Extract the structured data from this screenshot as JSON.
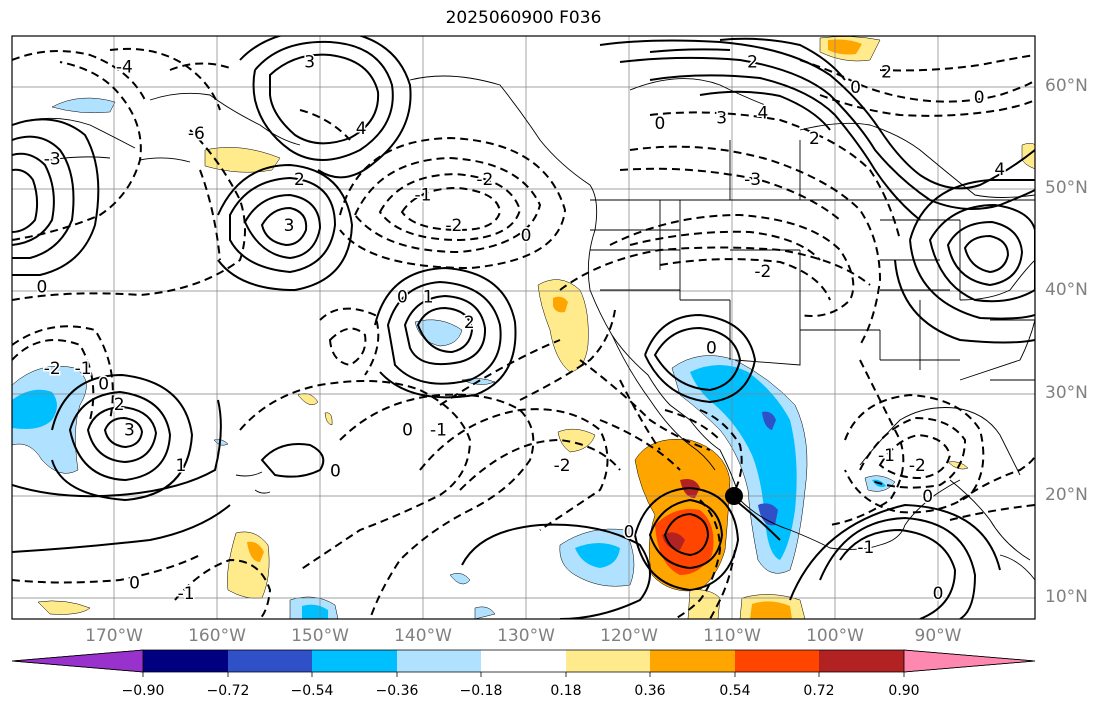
{
  "title": "2025060900 F036",
  "lat_labels": [
    {
      "text": "60°N",
      "lat": 60
    },
    {
      "text": "50°N",
      "lat": 50
    },
    {
      "text": "40°N",
      "lat": 40
    },
    {
      "text": "30°N",
      "lat": 30
    },
    {
      "text": "20°N",
      "lat": 20
    },
    {
      "text": "10°N",
      "lat": 10
    }
  ],
  "lon_labels": [
    {
      "text": "170°W",
      "lon": -170
    },
    {
      "text": "160°W",
      "lon": -160
    },
    {
      "text": "150°W",
      "lon": -150
    },
    {
      "text": "140°W",
      "lon": -140
    },
    {
      "text": "130°W",
      "lon": -130
    },
    {
      "text": "120°W",
      "lon": -120
    },
    {
      "text": "110°W",
      "lon": -110
    },
    {
      "text": "100°W",
      "lon": -100
    },
    {
      "text": "90°W",
      "lon": -90
    }
  ],
  "colorbar": {
    "colors": [
      "#9932cc",
      "#000080",
      "#3050c8",
      "#00bfff",
      "#b0e2ff",
      "#ffffff",
      "#ffeb8c",
      "#ffa500",
      "#ff4500",
      "#b22222",
      "#ff88b0"
    ],
    "tick_labels": [
      "−0.90",
      "−0.72",
      "−0.54",
      "−0.36",
      "−0.18",
      "0.18",
      "0.36",
      "0.54",
      "0.72",
      "0.90"
    ]
  },
  "contour_labels": [
    {
      "text": "-4",
      "lon": -169,
      "lat": 62
    },
    {
      "text": "3",
      "lon": -151,
      "lat": 62.5
    },
    {
      "text": "4",
      "lon": -146,
      "lat": 56
    },
    {
      "text": "-6",
      "lon": -162,
      "lat": 55.5
    },
    {
      "text": "-3",
      "lon": -176,
      "lat": 53
    },
    {
      "text": "2",
      "lon": -152,
      "lat": 51
    },
    {
      "text": "3",
      "lon": -153,
      "lat": 46.5
    },
    {
      "text": "-2",
      "lon": -134,
      "lat": 51
    },
    {
      "text": "-2",
      "lon": -137,
      "lat": 46.5
    },
    {
      "text": "-1",
      "lon": -140,
      "lat": 49.5
    },
    {
      "text": "0",
      "lon": -130,
      "lat": 45.5
    },
    {
      "text": "0",
      "lon": -177,
      "lat": 40.5
    },
    {
      "text": "0",
      "lon": -142,
      "lat": 39.5
    },
    {
      "text": "1",
      "lon": -139.5,
      "lat": 39.5
    },
    {
      "text": "2",
      "lon": -135.5,
      "lat": 37
    },
    {
      "text": "-2",
      "lon": -176,
      "lat": 32.5
    },
    {
      "text": "-1",
      "lon": -173,
      "lat": 32.5
    },
    {
      "text": "0",
      "lon": -171,
      "lat": 31
    },
    {
      "text": "2",
      "lon": -169.5,
      "lat": 29
    },
    {
      "text": "3",
      "lon": -168.5,
      "lat": 26.5
    },
    {
      "text": "1",
      "lon": -163.5,
      "lat": 23
    },
    {
      "text": "0",
      "lon": -148.5,
      "lat": 22.5
    },
    {
      "text": "0",
      "lon": -141.5,
      "lat": 26.5
    },
    {
      "text": "-1",
      "lon": -138.5,
      "lat": 26.5
    },
    {
      "text": "-2",
      "lon": -126.5,
      "lat": 23
    },
    {
      "text": "0",
      "lon": -112,
      "lat": 34.5
    },
    {
      "text": "0",
      "lon": -120,
      "lat": 16.5
    },
    {
      "text": "0",
      "lon": -168,
      "lat": 11.5
    },
    {
      "text": "-1",
      "lon": -163,
      "lat": 10.5
    },
    {
      "text": "-3",
      "lon": -108,
      "lat": 51
    },
    {
      "text": "3",
      "lon": -111,
      "lat": 57
    },
    {
      "text": "4",
      "lon": -107,
      "lat": 57.5
    },
    {
      "text": "2",
      "lon": -102,
      "lat": 55
    },
    {
      "text": "0",
      "lon": -117,
      "lat": 56.5
    },
    {
      "text": "0",
      "lon": -98,
      "lat": 60
    },
    {
      "text": "0",
      "lon": -86,
      "lat": 59
    },
    {
      "text": "2",
      "lon": -108,
      "lat": 62.5
    },
    {
      "text": "2",
      "lon": -95,
      "lat": 61.5
    },
    {
      "text": "-2",
      "lon": -107,
      "lat": 42
    },
    {
      "text": "4",
      "lon": -84,
      "lat": 52
    },
    {
      "text": "-2",
      "lon": -92,
      "lat": 23
    },
    {
      "text": "-1",
      "lon": -95,
      "lat": 24
    },
    {
      "text": "0",
      "lon": -91,
      "lat": 20
    },
    {
      "text": "-1",
      "lon": -97,
      "lat": 15
    },
    {
      "text": "0",
      "lon": -90,
      "lat": 10.5
    }
  ]
}
